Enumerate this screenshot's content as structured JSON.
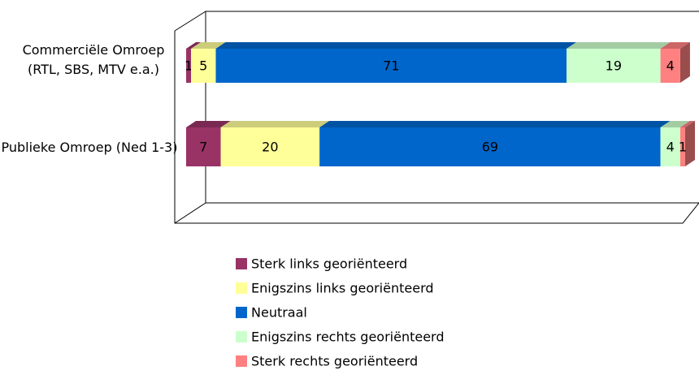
{
  "chart_data": {
    "type": "bar3d_stacked_horizontal",
    "categories": [
      "Commerciële Omroep (RTL, SBS, MTV e.a.)",
      "Publieke Omroep (Ned 1-3)"
    ],
    "series": [
      {
        "name": "Sterk links georiënteerd",
        "color": "#993366",
        "values": [
          1,
          7
        ]
      },
      {
        "name": "Enigszins links georiënteerd",
        "color": "#FFFF99",
        "values": [
          5,
          20
        ]
      },
      {
        "name": "Neutraal",
        "color": "#0066CC",
        "values": [
          71,
          69
        ]
      },
      {
        "name": "Enigszins rechts georiënteerd",
        "color": "#CCFFCC",
        "values": [
          19,
          4
        ]
      },
      {
        "name": "Sterk rechts georiënteerd",
        "color": "#FF8080",
        "values": [
          4,
          1
        ]
      }
    ],
    "legend": "bottom"
  }
}
